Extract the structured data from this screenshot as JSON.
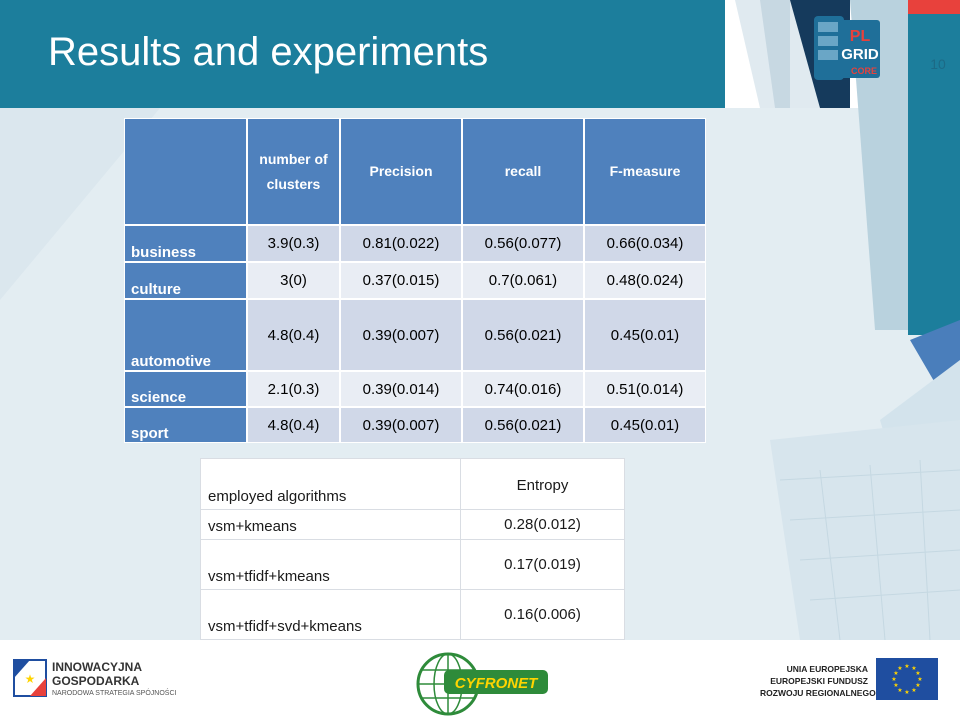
{
  "slide": {
    "title": "Results and experiments",
    "page_number": "10",
    "logo_text": {
      "pl": "PL",
      "grid": "GRID",
      "core": "CORE"
    }
  },
  "table1": {
    "headers": [
      "",
      "number of clusters",
      "Precision",
      "recall",
      "F-measure"
    ],
    "rows": [
      {
        "label": "business",
        "values": [
          "3.9(0.3)",
          "0.81(0.022)",
          "0.56(0.077)",
          "0.66(0.034)"
        ]
      },
      {
        "label": "culture",
        "values": [
          "3(0)",
          "0.37(0.015)",
          "0.7(0.061)",
          "0.48(0.024)"
        ]
      },
      {
        "label": "automotive",
        "values": [
          "4.8(0.4)",
          "0.39(0.007)",
          "0.56(0.021)",
          "0.45(0.01)"
        ]
      },
      {
        "label": "science",
        "values": [
          "2.1(0.3)",
          "0.39(0.014)",
          "0.74(0.016)",
          "0.51(0.014)"
        ]
      },
      {
        "label": "sport",
        "values": [
          "4.8(0.4)",
          "0.39(0.007)",
          "0.56(0.021)",
          "0.45(0.01)"
        ]
      }
    ]
  },
  "table2": {
    "headers": [
      "employed algorithms",
      "Entropy"
    ],
    "rows": [
      {
        "label": "vsm+kmeans",
        "value": "0.28(0.012)"
      },
      {
        "label": "vsm+tfidf+kmeans",
        "value": "0.17(0.019)"
      },
      {
        "label": "vsm+tfidf+svd+kmeans",
        "value": "0.16(0.006)"
      }
    ]
  },
  "footer": {
    "left_logo": {
      "line1": "INNOWACYJNA",
      "line2": "GOSPODARKA",
      "line3": "NARODOWA STRATEGIA SPÓJNOŚCI"
    },
    "center_logo": {
      "text": "CYFRONET"
    },
    "right_logo": {
      "line1": "UNIA EUROPEJSKA",
      "line2": "EUROPEJSKI FUNDUSZ",
      "line3": "ROZWOJU REGIONALNEGO"
    }
  },
  "colors": {
    "header_blue": "#1c7e9c",
    "table_header_blue": "#4f81bd",
    "row_band_dark": "#d0d8e8",
    "row_band_light": "#e9edf4",
    "accent_red": "#e8413c",
    "eu_blue": "#1f4ea0",
    "eu_star": "#ffd400"
  }
}
